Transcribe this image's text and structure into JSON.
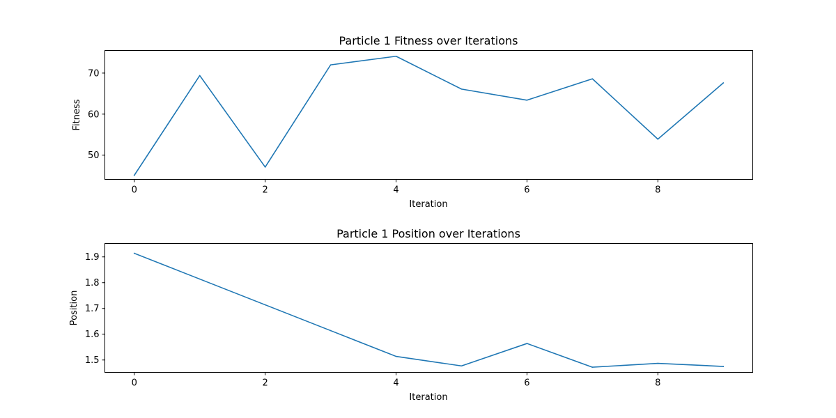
{
  "chart_data": [
    {
      "type": "line",
      "title": "Particle 1 Fitness over Iterations",
      "xlabel": "Iteration",
      "ylabel": "Fitness",
      "xlim": [
        -0.45,
        9.45
      ],
      "ylim": [
        44.1,
        75.5
      ],
      "xticks": [
        0,
        2,
        4,
        6,
        8
      ],
      "yticks": [
        50,
        60,
        70
      ],
      "grid": false,
      "color": "#1f77b4",
      "x": [
        0,
        1,
        2,
        3,
        4,
        5,
        6,
        7,
        8,
        9
      ],
      "y": [
        45.1,
        69.4,
        47.1,
        72.0,
        74.1,
        66.1,
        63.4,
        68.6,
        53.9,
        67.6
      ]
    },
    {
      "type": "line",
      "title": "Particle 1 Position over Iterations",
      "xlabel": "Iteration",
      "ylabel": "Position",
      "xlim": [
        -0.45,
        9.45
      ],
      "ylim": [
        1.452,
        1.952
      ],
      "xticks": [
        0,
        2,
        4,
        6,
        8
      ],
      "yticks": [
        1.5,
        1.6,
        1.7,
        1.8,
        1.9
      ],
      "grid": false,
      "color": "#1f77b4",
      "x": [
        0,
        1,
        2,
        3,
        4,
        5,
        6,
        7,
        8,
        9
      ],
      "y": [
        1.914,
        1.814,
        1.714,
        1.614,
        1.514,
        1.477,
        1.564,
        1.472,
        1.487,
        1.475
      ]
    }
  ]
}
